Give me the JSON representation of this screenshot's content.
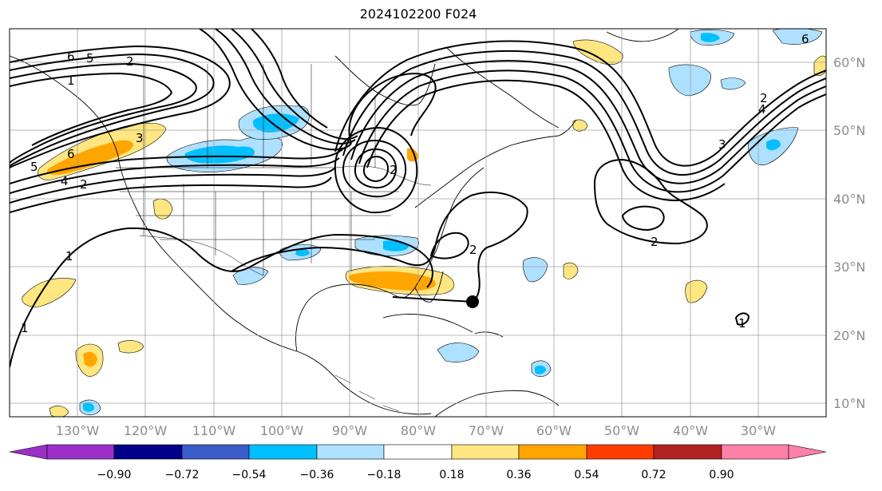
{
  "title": "2024102200 F024",
  "lon_labels": [
    "130°W",
    "120°W",
    "110°W",
    "100°W",
    "90°W",
    "80°W",
    "70°W",
    "60°W",
    "50°W",
    "40°W",
    "30°W"
  ],
  "lat_labels": [
    "60°N",
    "50°N",
    "40°N",
    "30°N",
    "20°N",
    "10°N"
  ],
  "colorbar": {
    "ticks": [
      "−0.90",
      "−0.72",
      "−0.54",
      "−0.36",
      "−0.18",
      "0.18",
      "0.36",
      "0.54",
      "0.72",
      "0.90"
    ],
    "colors": [
      "#9b30c8",
      "#00008b",
      "#3a5cc8",
      "#00bfff",
      "#aee0ff",
      "#ffffff",
      "#ffe680",
      "#ffa500",
      "#ff3c00",
      "#b22222",
      "#ff80a8"
    ]
  },
  "contour_labels": [
    "6",
    "5",
    "2",
    "1",
    "3",
    "6",
    "5",
    "4",
    "2",
    "1",
    "2",
    "1",
    "2",
    "3",
    "4",
    "6",
    "2",
    "1",
    "2"
  ],
  "marker": {
    "name": "storm-center-dot"
  },
  "colors": {
    "contour": "#000000",
    "grid": "#a0a0a0",
    "coast": "#000000",
    "blue_light": "#aee0ff",
    "blue_mid": "#00bfff",
    "yellow": "#ffe680",
    "orange": "#ffa500"
  }
}
